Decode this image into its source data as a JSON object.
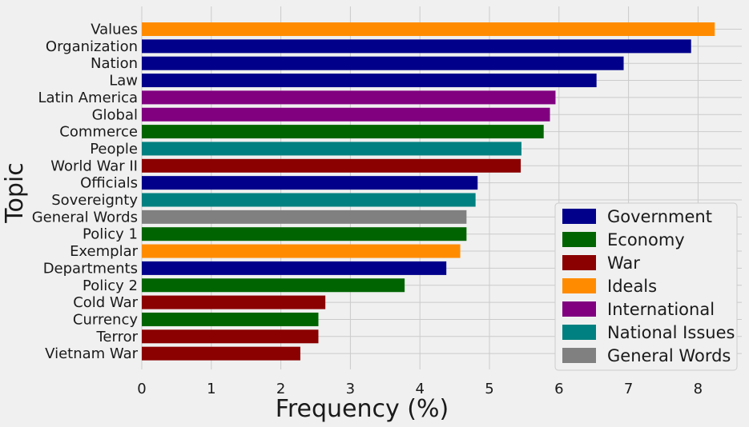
{
  "chart_data": {
    "type": "bar",
    "orientation": "horizontal",
    "xlabel": "Frequency (%)",
    "ylabel": "Topic",
    "xlim": [
      0,
      8.6
    ],
    "xticks": [
      0,
      1,
      2,
      3,
      4,
      5,
      6,
      7,
      8
    ],
    "grid": true,
    "legend_position": "bottom-right",
    "categories": [
      "Values",
      "Organization",
      "Nation",
      "Law",
      "Latin America",
      "Global",
      "Commerce",
      "People",
      "World War II",
      "Officials",
      "Sovereignty",
      "General Words",
      "Policy 1",
      "Exemplar",
      "Departments",
      "Policy 2",
      "Cold War",
      "Currency",
      "Terror",
      "Vietnam War"
    ],
    "values": [
      8.24,
      7.9,
      6.93,
      6.54,
      5.95,
      5.87,
      5.78,
      5.46,
      5.45,
      4.83,
      4.8,
      4.67,
      4.67,
      4.58,
      4.38,
      3.78,
      2.64,
      2.54,
      2.54,
      2.28
    ],
    "groups": [
      "Ideals",
      "Government",
      "Government",
      "Government",
      "International",
      "International",
      "Economy",
      "National Issues",
      "War",
      "Government",
      "National Issues",
      "General Words",
      "Economy",
      "Ideals",
      "Government",
      "Economy",
      "War",
      "Economy",
      "War",
      "War"
    ],
    "legend": [
      {
        "name": "Government",
        "color": "#00008b"
      },
      {
        "name": "Economy",
        "color": "#006400"
      },
      {
        "name": "War",
        "color": "#8b0000"
      },
      {
        "name": "Ideals",
        "color": "#ff8c00"
      },
      {
        "name": "International",
        "color": "#800080"
      },
      {
        "name": "National Issues",
        "color": "#008080"
      },
      {
        "name": "General Words",
        "color": "#808080"
      }
    ]
  }
}
